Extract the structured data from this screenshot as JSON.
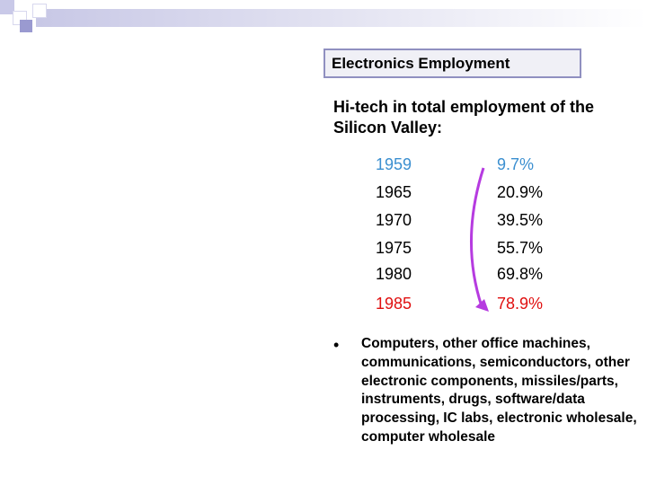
{
  "slide": {
    "title": "Electronics Employment",
    "subtitle": "Hi-tech in total employment of the Silicon Valley:",
    "rows": [
      {
        "year": "1959",
        "pct": "9.7%",
        "color": "#3b8fd0"
      },
      {
        "year": "1965",
        "pct": "20.9%",
        "color": "#000000"
      },
      {
        "year": "1970",
        "pct": "39.5%",
        "color": "#000000"
      },
      {
        "year": "1975",
        "pct": "55.7%",
        "color": "#000000"
      },
      {
        "year": "1980",
        "pct": "69.8%",
        "color": "#000000"
      },
      {
        "year": "1985",
        "pct": "78.9%",
        "color": "#e01010"
      }
    ],
    "arrow_color": "#b63be0",
    "bullet_symbol": "•",
    "bullet_text": "Computers, other office machines, communications, semiconductors, other electronic components, missiles/parts, instruments, drugs, software/data processing, IC labs, electronic wholesale, computer wholesale"
  }
}
